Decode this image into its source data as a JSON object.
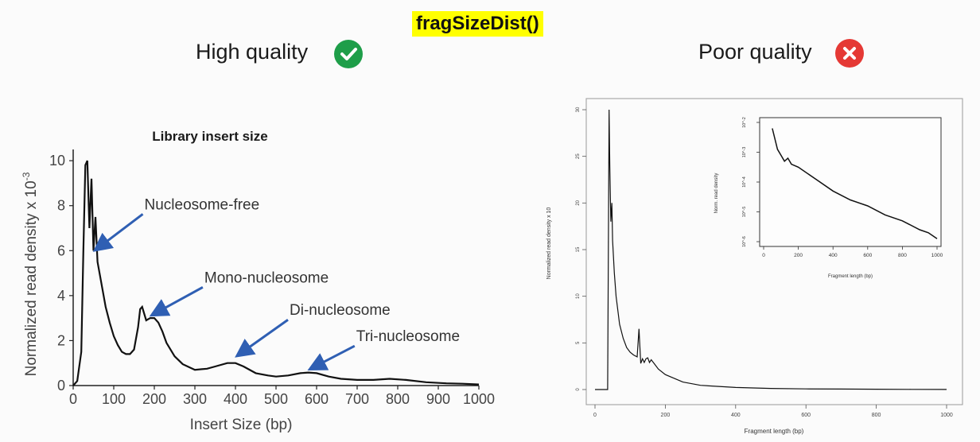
{
  "slide": {
    "title": "fragSizeDist()",
    "good_label": "High quality",
    "bad_label": "Poor quality",
    "good_color": "#1e9e49",
    "bad_color": "#e53935"
  },
  "chart_data": [
    {
      "type": "line",
      "title": "Library insert size",
      "xlabel": "Insert Size (bp)",
      "ylabel": "Normalized read density  x 10",
      "ylabel_exponent": "-3",
      "xlim": [
        0,
        1000
      ],
      "ylim": [
        0,
        10.5
      ],
      "x_ticks": [
        "0",
        "100",
        "200",
        "300",
        "400",
        "500",
        "600",
        "700",
        "800",
        "900",
        "1000"
      ],
      "y_ticks": [
        "0",
        "2",
        "4",
        "6",
        "8",
        "10"
      ],
      "series": [
        {
          "x": [
            0,
            10,
            20,
            25,
            30,
            35,
            40,
            45,
            50,
            55,
            60,
            70,
            80,
            90,
            100,
            110,
            120,
            130,
            140,
            150,
            160,
            165,
            170,
            180,
            190,
            200,
            210,
            220,
            230,
            250,
            270,
            300,
            330,
            350,
            380,
            400,
            420,
            450,
            480,
            500,
            530,
            560,
            580,
            600,
            630,
            660,
            700,
            740,
            780,
            820,
            870,
            920,
            960,
            1000
          ],
          "y": [
            0,
            0.2,
            1.5,
            6,
            9.8,
            10,
            7,
            9.2,
            6,
            7.5,
            5.5,
            4.5,
            3.5,
            2.8,
            2.2,
            1.8,
            1.5,
            1.4,
            1.4,
            1.6,
            2.6,
            3.4,
            3.5,
            2.9,
            3.0,
            3.0,
            2.8,
            2.4,
            1.9,
            1.3,
            0.95,
            0.7,
            0.75,
            0.85,
            1.0,
            1.0,
            0.85,
            0.55,
            0.45,
            0.4,
            0.45,
            0.55,
            0.58,
            0.55,
            0.4,
            0.3,
            0.25,
            0.25,
            0.3,
            0.25,
            0.15,
            0.1,
            0.08,
            0.05
          ]
        }
      ],
      "annotations": [
        {
          "text": "Nucleosome-free",
          "x": 50,
          "y": 6.0
        },
        {
          "text": "Mono-nucleosome",
          "x": 190,
          "y": 3.1
        },
        {
          "text": "Di-nucleosome",
          "x": 400,
          "y": 1.3
        },
        {
          "text": "Tri-nucleosome",
          "x": 580,
          "y": 0.7
        }
      ]
    },
    {
      "type": "line",
      "title": "",
      "xlabel": "Fragment length (bp)",
      "ylabel": "Normalized read density x 10",
      "xlim": [
        0,
        1000
      ],
      "ylim": [
        0,
        30
      ],
      "x_ticks": [
        "0",
        "200",
        "400",
        "600",
        "800",
        "1000"
      ],
      "y_ticks": [
        "0",
        "5",
        "10",
        "15",
        "20",
        "25",
        "30"
      ],
      "series": [
        {
          "x": [
            0,
            30,
            36,
            40,
            42,
            45,
            48,
            50,
            55,
            60,
            70,
            80,
            90,
            100,
            110,
            120,
            125,
            130,
            135,
            140,
            145,
            150,
            155,
            160,
            170,
            180,
            200,
            250,
            300,
            400,
            500,
            600,
            700,
            800,
            900,
            1000
          ],
          "y": [
            0,
            0,
            0,
            30,
            24,
            18,
            20,
            16,
            12.5,
            10,
            7,
            5.5,
            4.5,
            4.0,
            3.7,
            3.5,
            6.5,
            2.8,
            3.3,
            2.9,
            3.3,
            3.4,
            2.9,
            3.2,
            2.7,
            2.2,
            1.6,
            0.8,
            0.45,
            0.22,
            0.12,
            0.07,
            0.05,
            0.03,
            0.02,
            0.01
          ]
        }
      ],
      "inset": {
        "type": "line",
        "scale": "log",
        "xlabel": "Fragment length (bp)",
        "ylabel": "Norm. read density",
        "xlim": [
          0,
          1000
        ],
        "x_ticks": [
          "0",
          "200",
          "400",
          "600",
          "800",
          "1000"
        ],
        "y_ticks": [
          "10^-2",
          "10^-3",
          "10^-4",
          "10^-5",
          "10^-6"
        ],
        "ylim_exponent": [
          -6,
          -2
        ],
        "series": [
          {
            "x": [
              50,
              80,
              100,
              120,
              140,
              160,
              200,
              300,
              400,
              500,
              600,
              700,
              800,
              900,
              950,
              1000
            ],
            "y_exp": [
              -2.2,
              -2.9,
              -3.1,
              -3.3,
              -3.2,
              -3.4,
              -3.5,
              -3.9,
              -4.3,
              -4.6,
              -4.8,
              -5.1,
              -5.3,
              -5.6,
              -5.7,
              -5.9
            ]
          }
        ]
      }
    }
  ]
}
